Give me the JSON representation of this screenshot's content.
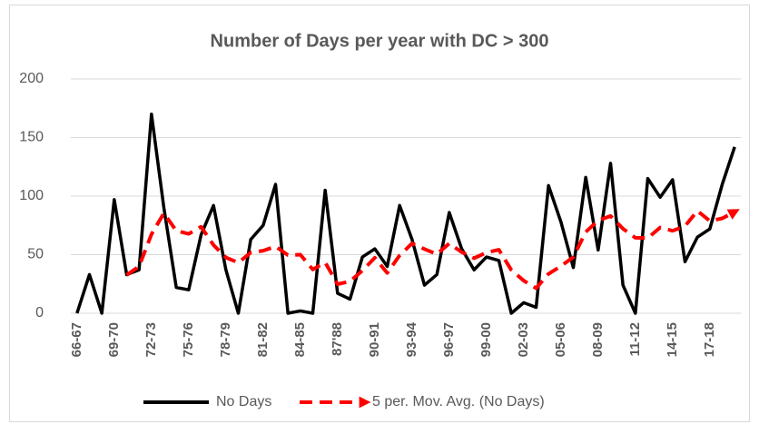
{
  "chart_data": {
    "type": "line",
    "title": "Number of Days per year with DC > 300",
    "categories": [
      "66-67",
      null,
      null,
      "69-70",
      null,
      null,
      "72-73",
      null,
      null,
      "75-76",
      null,
      null,
      "78-79",
      null,
      null,
      "81-82",
      null,
      null,
      "84-85",
      null,
      null,
      "87'88",
      null,
      null,
      "90-91",
      null,
      null,
      "93-94",
      null,
      null,
      "96-97",
      null,
      null,
      "99-00",
      null,
      null,
      "02-03",
      null,
      null,
      "05-06",
      null,
      null,
      "08-09",
      null,
      null,
      "11-12",
      null,
      null,
      "14-15",
      null,
      null,
      "17-18",
      null,
      null
    ],
    "series": [
      {
        "name": "No Days",
        "color": "#000000",
        "dashed": false,
        "values": [
          0,
          33,
          0,
          97,
          33,
          37,
          170,
          90,
          22,
          20,
          67,
          92,
          37,
          0,
          63,
          75,
          110,
          0,
          2,
          0,
          105,
          17,
          12,
          48,
          55,
          40,
          92,
          63,
          24,
          33,
          86,
          55,
          37,
          48,
          45,
          0,
          9,
          5,
          109,
          78,
          39,
          116,
          54,
          128,
          24,
          0,
          115,
          99,
          114,
          44,
          65,
          72,
          110,
          142
        ]
      },
      {
        "name": "5 per. Mov. Avg. (No Days)",
        "color": "#ff0000",
        "dashed": true,
        "values": [
          null,
          null,
          null,
          null,
          32.6,
          40,
          67.4,
          85.4,
          70.4,
          67.8,
          73.8,
          58.2,
          47.6,
          43.2,
          51.8,
          53.4,
          57,
          49.6,
          50,
          37.4,
          43.4,
          24.8,
          27.2,
          36.4,
          47.4,
          34.4,
          49.4,
          59.6,
          54.8,
          50.4,
          59.6,
          52.2,
          47,
          51.8,
          54.2,
          37,
          27.8,
          21.4,
          33.6,
          40.2,
          48,
          69.4,
          79.2,
          83,
          72.2,
          64.4,
          64.2,
          73.2,
          70.4,
          74.4,
          87.4,
          78.8,
          81,
          86.6
        ]
      }
    ],
    "ylim": [
      0,
      200
    ],
    "yticks": [
      0,
      50,
      100,
      150,
      200
    ],
    "grid": true,
    "legend": "bottom"
  }
}
